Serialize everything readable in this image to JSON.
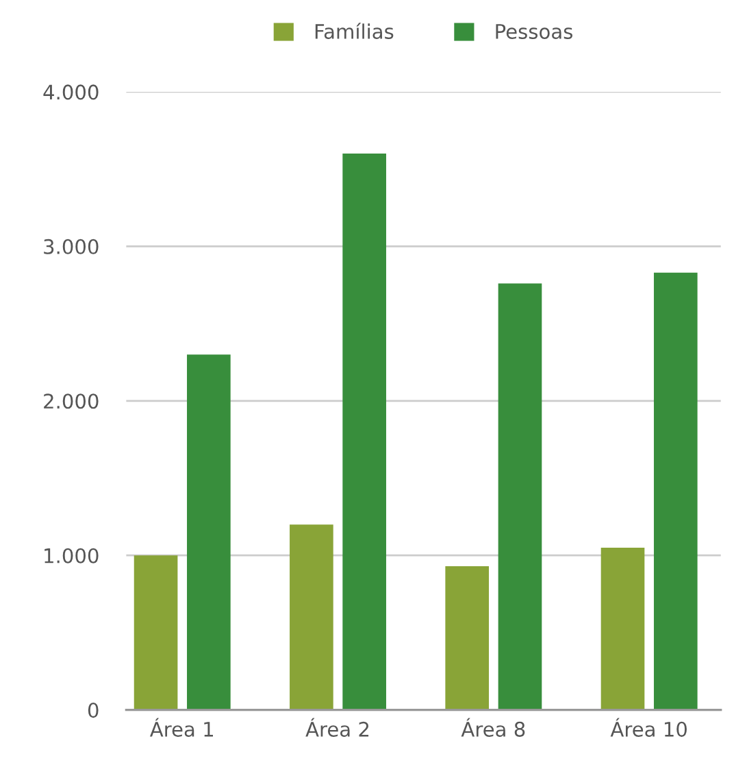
{
  "chart_data": {
    "type": "bar",
    "categories": [
      "Área 1",
      "Área 2",
      "Área 8",
      "Área 10"
    ],
    "series": [
      {
        "name": "Famílias",
        "color": "#89a437",
        "values": [
          1000,
          1200,
          930,
          1050
        ]
      },
      {
        "name": "Pessoas",
        "color": "#388e3c",
        "values": [
          2300,
          3600,
          2760,
          2830
        ]
      }
    ],
    "ylim": [
      0,
      4000
    ],
    "yticks": [
      0,
      {
        "value": 1000,
        "label": "1.000"
      },
      {
        "value": 2000,
        "label": "2.000"
      },
      {
        "value": 3000,
        "label": "3.000"
      },
      {
        "value": 4000,
        "label": "4.000"
      }
    ],
    "grid": "y",
    "legend": "top"
  }
}
